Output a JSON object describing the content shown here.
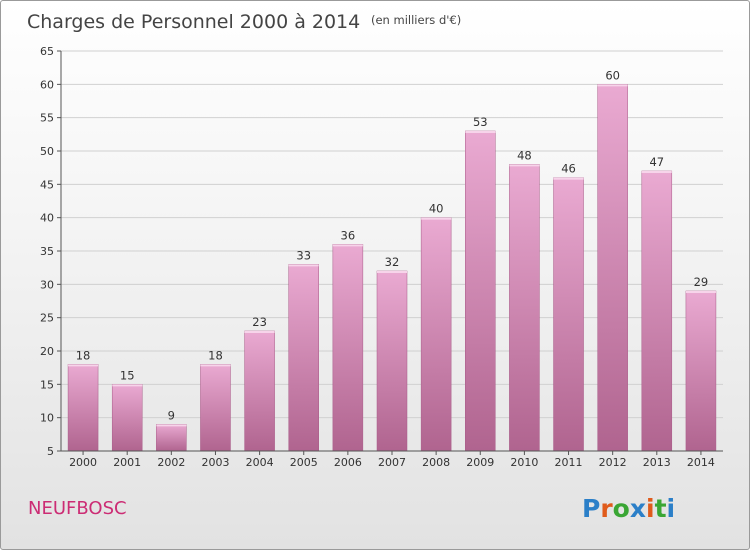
{
  "header": {
    "title": "Charges de Personnel 2000 à 2014",
    "subtitle": "(en milliers d'€)"
  },
  "footer": {
    "commune": "NEUFBOSC",
    "logo": {
      "letters": [
        "P",
        "r",
        "o",
        "x",
        "i",
        "t",
        "i"
      ],
      "colors": [
        "#2b7fc8",
        "#e05b1b",
        "#3aa634",
        "#2b7fc8",
        "#e05b1b",
        "#3aa634",
        "#2b7fc8"
      ]
    }
  },
  "colors": {
    "bar_top": "#eaaad2",
    "bar_bottom": "#b0648f",
    "axis": "#555555",
    "grid": "#d0d0d0",
    "commune": "#cc2c74"
  },
  "chart_data": {
    "type": "bar",
    "title": "Charges de Personnel 2000 à 2014",
    "subtitle": "(en milliers d'€)",
    "categories": [
      "2000",
      "2001",
      "2002",
      "2003",
      "2004",
      "2005",
      "2006",
      "2007",
      "2008",
      "2009",
      "2010",
      "2011",
      "2012",
      "2013",
      "2014"
    ],
    "values": [
      18,
      15,
      9,
      18,
      23,
      33,
      36,
      32,
      40,
      53,
      48,
      46,
      60,
      47,
      29
    ],
    "ylim": [
      5,
      65
    ],
    "yticks": [
      5,
      10,
      15,
      20,
      25,
      30,
      35,
      40,
      45,
      50,
      55,
      60,
      65
    ],
    "grid": "y",
    "legend": "none",
    "data_labels": true
  }
}
